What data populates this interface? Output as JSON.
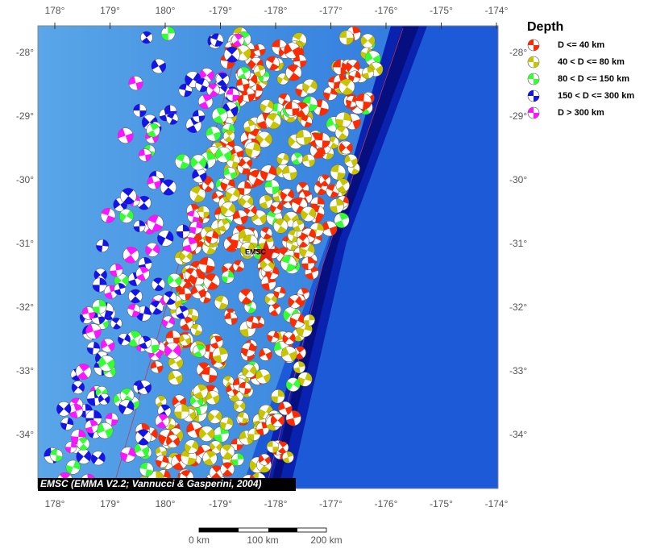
{
  "map": {
    "lon_labels": [
      "178°",
      "179°",
      "180°",
      "-179°",
      "-178°",
      "-177°",
      "-176°",
      "-175°",
      "-174°"
    ],
    "lat_labels": [
      "-28°",
      "-29°",
      "-30°",
      "-31°",
      "-32°",
      "-33°",
      "-34°"
    ],
    "marker_label": "EMSC",
    "credit": "EMSC (EMMA V2.2; Vannucci & Gasperini, 2004)",
    "legend": {
      "title": "Depth",
      "items": [
        {
          "label": "D <= 40 km",
          "color": "#ff2a00"
        },
        {
          "label": "40 < D <= 80 km",
          "color": "#c8c400"
        },
        {
          "label": "80 < D <= 150 km",
          "color": "#33ff33"
        },
        {
          "label": "150 < D <= 300 km",
          "color": "#1414e6"
        },
        {
          "label": "D > 300 km",
          "color": "#ff14ff"
        }
      ]
    },
    "scale_labels": [
      "0 km",
      "100 km",
      "200 km"
    ]
  }
}
